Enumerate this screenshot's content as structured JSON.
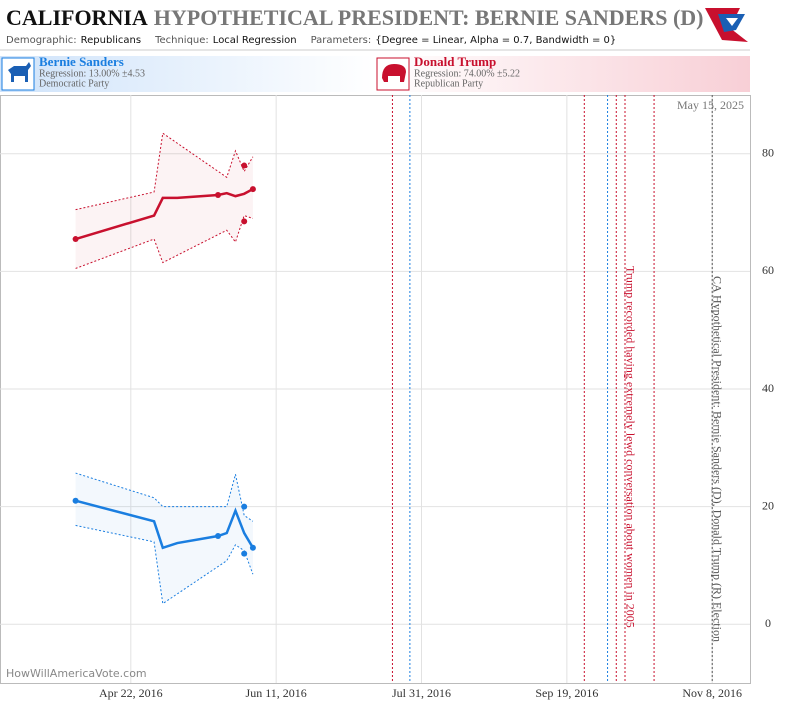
{
  "chart_data": {
    "type": "scatter",
    "title_state": "CALIFORNIA",
    "title": "HYPOTHETICAL PRESIDENT: BERNIE SANDERS (D)",
    "parameters": [
      {
        "label": "Demographic:",
        "value": "Republicans"
      },
      {
        "label": "Technique:",
        "value": "Local Regression"
      },
      {
        "label": "Parameters:",
        "value": "{Degree = Linear, Alpha = 0.7, Bandwidth = 0}"
      }
    ],
    "date_label": "May 15, 2025",
    "watermark": "HowWillAmericaVote.com",
    "xlim": [
      "2016-03-08",
      "2016-11-21"
    ],
    "xticks": [
      {
        "value": "2016-04-22",
        "label": "Apr 22, 2016"
      },
      {
        "value": "2016-06-11",
        "label": "Jun 11, 2016"
      },
      {
        "value": "2016-07-31",
        "label": "Jul 31, 2016"
      },
      {
        "value": "2016-09-19",
        "label": "Sep 19, 2016"
      },
      {
        "value": "2016-11-08",
        "label": "Nov 8, 2016"
      }
    ],
    "ylim": [
      -10,
      90
    ],
    "yticks": [
      0,
      20,
      40,
      60,
      80
    ],
    "grid": true,
    "series": [
      {
        "name": "Bernie Sanders",
        "regression": "Regression: 13.00% ±4.53",
        "party": "Democratic Party",
        "color": "#1a7ee0",
        "x": [
          "2016-04-03",
          "2016-05-22",
          "2016-05-31",
          "2016-05-31",
          "2016-06-03"
        ],
        "values": [
          21,
          15,
          20,
          12,
          13
        ],
        "trend": {
          "x": [
            "2016-04-03",
            "2016-04-30",
            "2016-05-03",
            "2016-05-08",
            "2016-05-22",
            "2016-05-25",
            "2016-05-28",
            "2016-05-31",
            "2016-06-03"
          ],
          "values": [
            21,
            17.5,
            13,
            13.8,
            15,
            15.5,
            19.3,
            15.5,
            13
          ]
        },
        "band": {
          "x": [
            "2016-04-03",
            "2016-04-30",
            "2016-05-03",
            "2016-05-25",
            "2016-05-28",
            "2016-05-31",
            "2016-06-03"
          ],
          "upper": [
            25.7,
            21.5,
            20,
            20,
            25.5,
            18.5,
            17.5
          ],
          "lower": [
            16.8,
            14,
            3.5,
            10.8,
            13.5,
            12.5,
            8.5
          ]
        }
      },
      {
        "name": "Donald Trump",
        "regression": "Regression: 74.00% ±5.22",
        "party": "Republican Party",
        "color": "#c8102e",
        "x": [
          "2016-04-03",
          "2016-05-22",
          "2016-05-31",
          "2016-05-31",
          "2016-06-03"
        ],
        "values": [
          65.5,
          73,
          78,
          68.5,
          74
        ],
        "trend": {
          "x": [
            "2016-04-03",
            "2016-04-30",
            "2016-05-03",
            "2016-05-08",
            "2016-05-22",
            "2016-05-25",
            "2016-05-28",
            "2016-05-31",
            "2016-06-03"
          ],
          "values": [
            65.5,
            69.5,
            72.5,
            72.5,
            73,
            73.3,
            72.8,
            73.2,
            74
          ]
        },
        "band": {
          "x": [
            "2016-04-03",
            "2016-04-30",
            "2016-05-03",
            "2016-05-25",
            "2016-05-28",
            "2016-05-31",
            "2016-06-03"
          ],
          "upper": [
            70.5,
            73.5,
            83.5,
            76,
            80.5,
            77,
            79.5
          ],
          "lower": [
            60.5,
            65.5,
            61.5,
            67,
            65,
            69.5,
            69
          ]
        }
      }
    ],
    "events": [
      {
        "date": "2016-07-21",
        "color": "#c8102e"
      },
      {
        "date": "2016-07-27",
        "color": "#1a7ee0"
      },
      {
        "date": "2016-09-25",
        "color": "#c8102e"
      },
      {
        "date": "2016-10-03",
        "color": "#1a7ee0"
      },
      {
        "date": "2016-10-06",
        "color": "#c8102e"
      },
      {
        "date": "2016-10-19",
        "color": "#c8102e"
      }
    ],
    "annotations": [
      {
        "date": "2016-10-09",
        "text": "Trump recorded having extremely lewd conversation about women in 2005",
        "color": "#c8102e"
      },
      {
        "date": "2016-11-08",
        "text": "CA Hypothetical President: Bernie Sanders (D), Donald Trump (R) Election",
        "color": "#555555"
      }
    ]
  }
}
